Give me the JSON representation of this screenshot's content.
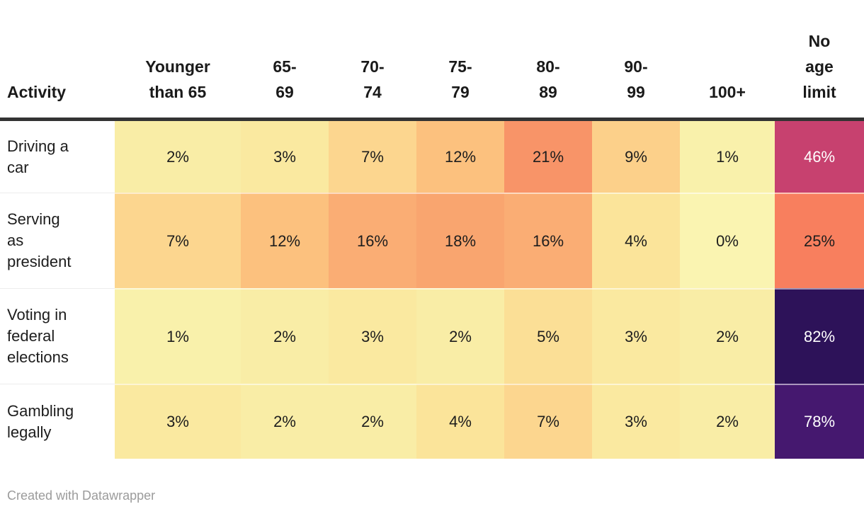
{
  "chart_data": {
    "type": "heatmap",
    "row_header": "Activity",
    "categories": [
      "Younger than 65",
      "65-69",
      "70-74",
      "75-79",
      "80-89",
      "90-99",
      "100+",
      "No age limit"
    ],
    "rows": [
      "Driving a car",
      "Serving as president",
      "Voting in federal elections",
      "Gambling legally"
    ],
    "values_percent": [
      [
        2,
        3,
        7,
        12,
        21,
        9,
        1,
        46
      ],
      [
        7,
        12,
        16,
        18,
        16,
        4,
        0,
        25
      ],
      [
        1,
        2,
        3,
        2,
        5,
        3,
        2,
        82
      ],
      [
        3,
        2,
        2,
        4,
        7,
        3,
        2,
        78
      ]
    ],
    "value_format": "percent",
    "legend_position": "none",
    "color_scale": "pale yellow (low) to orange to magenta to dark purple (high)"
  },
  "table": {
    "corner_header": "Activity",
    "column_headers": [
      "Younger\nthan 65",
      "65-\n69",
      "70-\n74",
      "75-\n79",
      "80-\n89",
      "90-\n99",
      "100+",
      "No\nage\nlimit"
    ],
    "rows": [
      {
        "label": "Driving a\ncar",
        "cells": [
          {
            "text": "2%",
            "bg": "#f9eda6"
          },
          {
            "text": "3%",
            "bg": "#fae9a0"
          },
          {
            "text": "7%",
            "bg": "#fcd68f"
          },
          {
            "text": "12%",
            "bg": "#fcc17e"
          },
          {
            "text": "21%",
            "bg": "#f89468"
          },
          {
            "text": "9%",
            "bg": "#fcd08a"
          },
          {
            "text": "1%",
            "bg": "#f9f1ab"
          },
          {
            "text": "46%",
            "bg": "#c7416f",
            "fg": "#ffffff"
          }
        ]
      },
      {
        "label": "Serving\nas\npresident",
        "cells": [
          {
            "text": "7%",
            "bg": "#fcd68f"
          },
          {
            "text": "12%",
            "bg": "#fcc17e"
          },
          {
            "text": "16%",
            "bg": "#faad74"
          },
          {
            "text": "18%",
            "bg": "#f9a56f"
          },
          {
            "text": "16%",
            "bg": "#faad74"
          },
          {
            "text": "4%",
            "bg": "#fbe49a"
          },
          {
            "text": "0%",
            "bg": "#faf4b1"
          },
          {
            "text": "25%",
            "bg": "#f87f5e"
          }
        ]
      },
      {
        "label": "Voting in\nfederal\nelections",
        "cells": [
          {
            "text": "1%",
            "bg": "#f9f1ab"
          },
          {
            "text": "2%",
            "bg": "#f9eda6"
          },
          {
            "text": "3%",
            "bg": "#fae9a0"
          },
          {
            "text": "2%",
            "bg": "#f9eda6"
          },
          {
            "text": "5%",
            "bg": "#fbdf96"
          },
          {
            "text": "3%",
            "bg": "#fae9a0"
          },
          {
            "text": "2%",
            "bg": "#f9eda6"
          },
          {
            "text": "82%",
            "bg": "#2d1259",
            "fg": "#ffffff"
          }
        ]
      },
      {
        "label": "Gambling\nlegally",
        "cells": [
          {
            "text": "3%",
            "bg": "#fae9a0"
          },
          {
            "text": "2%",
            "bg": "#f9eda6"
          },
          {
            "text": "2%",
            "bg": "#f9eda6"
          },
          {
            "text": "4%",
            "bg": "#fbe49a"
          },
          {
            "text": "7%",
            "bg": "#fcd68f"
          },
          {
            "text": "3%",
            "bg": "#fae9a0"
          },
          {
            "text": "2%",
            "bg": "#f9eda6"
          },
          {
            "text": "78%",
            "bg": "#45186f",
            "fg": "#ffffff"
          }
        ]
      }
    ]
  },
  "footer": {
    "credit": "Created with Datawrapper"
  },
  "colors": {
    "background": "#ffffff",
    "header_rule": "#333333",
    "text": "#1d1d1d",
    "footer_text": "#9b9b9b"
  }
}
